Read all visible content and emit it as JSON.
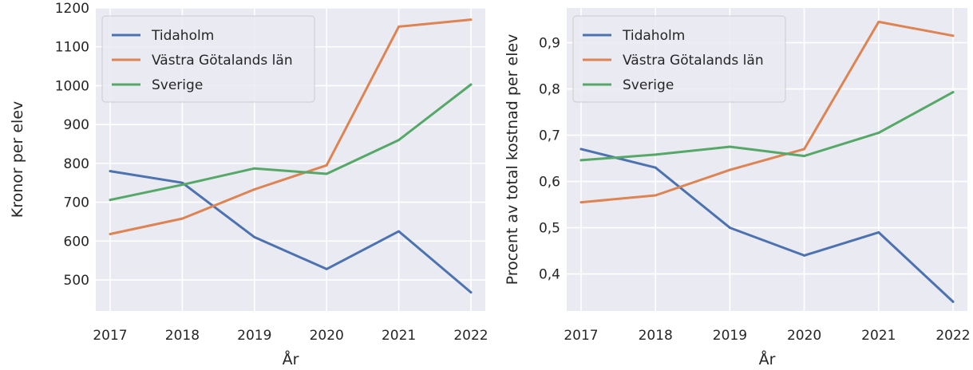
{
  "colors": {
    "background": "#eaeaf2",
    "grid": "#ffffff",
    "Tidaholm": "#4c72b0",
    "Västra Götalands län": "#dd8452",
    "Sverige": "#55a868"
  },
  "chart_data": [
    {
      "type": "line",
      "x": [
        "2017",
        "2018",
        "2019",
        "2020",
        "2021",
        "2022"
      ],
      "xlabel": "År",
      "ylabel": "Kronor per elev",
      "ylim": [
        420,
        1200
      ],
      "yticks": [
        "500",
        "600",
        "700",
        "800",
        "900",
        "1000",
        "1100",
        "1200"
      ],
      "grid": true,
      "legend_position": "top-left",
      "series": [
        {
          "name": "Tidaholm",
          "values": [
            780,
            750,
            610,
            528,
            625,
            468
          ]
        },
        {
          "name": "Västra Götalands län",
          "values": [
            618,
            658,
            733,
            795,
            1152,
            1170
          ]
        },
        {
          "name": "Sverige",
          "values": [
            706,
            745,
            787,
            773,
            860,
            1003
          ]
        }
      ]
    },
    {
      "type": "line",
      "x": [
        "2017",
        "2018",
        "2019",
        "2020",
        "2021",
        "2022"
      ],
      "xlabel": "År",
      "ylabel": "Procent av total kostnad per elev",
      "ylim": [
        0.32,
        0.975
      ],
      "yticks": [
        "0,4",
        "0,5",
        "0,6",
        "0,7",
        "0,8",
        "0,9"
      ],
      "grid": true,
      "legend_position": "top-left",
      "series": [
        {
          "name": "Tidaholm",
          "values": [
            0.67,
            0.63,
            0.5,
            0.44,
            0.49,
            0.34
          ]
        },
        {
          "name": "Västra Götalands län",
          "values": [
            0.555,
            0.57,
            0.625,
            0.67,
            0.945,
            0.915
          ]
        },
        {
          "name": "Sverige",
          "values": [
            0.646,
            0.658,
            0.675,
            0.655,
            0.705,
            0.793
          ]
        }
      ]
    }
  ]
}
